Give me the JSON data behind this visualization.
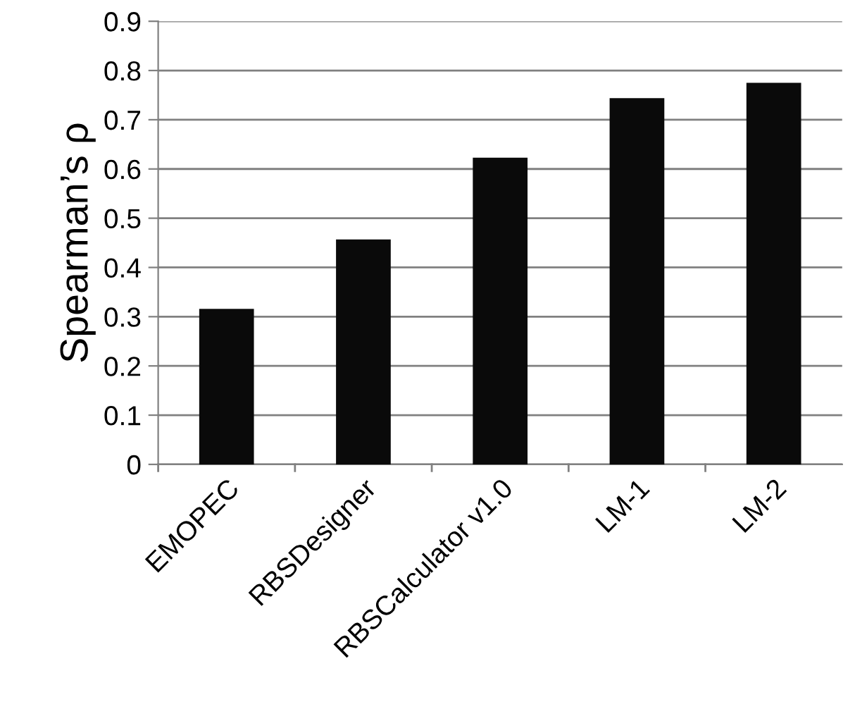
{
  "chart_data": {
    "type": "bar",
    "ylabel": "Spearman’s ρ",
    "categories": [
      "EMOPEC",
      "RBSDesigner",
      "RBSCalculator v1.0",
      "LM-1",
      "LM-2"
    ],
    "values": [
      0.316,
      0.457,
      0.623,
      0.744,
      0.775
    ],
    "color": "#0a0a0a",
    "ylim": [
      0,
      0.9
    ],
    "yticks": [
      0,
      0.1,
      0.2,
      0.3,
      0.4,
      0.5,
      0.6,
      0.7,
      0.8,
      0.9
    ],
    "grid": "y",
    "legend": false
  }
}
